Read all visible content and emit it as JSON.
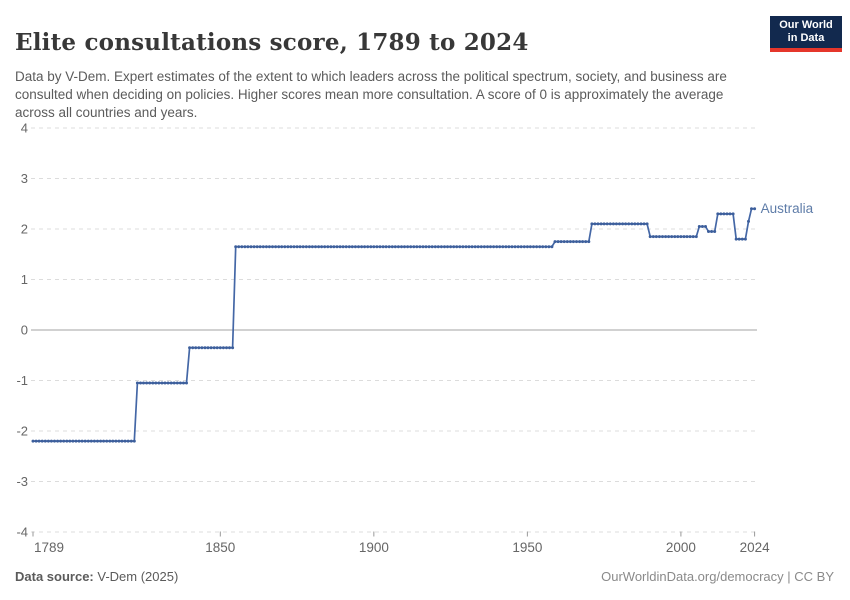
{
  "header": {
    "title": "Elite consultations score, 1789 to 2024",
    "subtitle": "Data by V-Dem. Expert estimates of the extent to which leaders across the political spectrum, society, and business are consulted when deciding on policies. Higher scores mean more consultation. A score of 0 is approximately the average across all countries and years.",
    "logo": {
      "line1": "Our World",
      "line2": "in Data",
      "background": "#12294E",
      "stripe": "#E5362B"
    }
  },
  "footer": {
    "source_label": "Data source:",
    "source_value": "V-Dem (2025)",
    "attribution": "OurWorldinData.org/democracy | CC BY"
  },
  "chart_data": {
    "type": "line",
    "title": "Elite consultations score, 1789 to 2024",
    "xlabel": "",
    "ylabel": "",
    "x": {
      "min": 1789,
      "max": 2024,
      "ticks": [
        1789,
        1850,
        1900,
        1950,
        2000,
        2024
      ]
    },
    "y": {
      "min": -4,
      "max": 4,
      "ticks": [
        4,
        3,
        2,
        1,
        0,
        -1,
        -2,
        -3,
        -4
      ],
      "zero_line": true
    },
    "grid": "dashed-horizontal",
    "legend": "entity-label-right-of-line",
    "colors": {
      "line": "#4467A6",
      "dot": "#3D5F9C",
      "series_label": "#5E7CA8",
      "grid": "#DCDCDC",
      "zero_line": "#A3A3A3",
      "tick": "#999999",
      "axis_text": "#666666"
    },
    "series": [
      {
        "name": "Australia",
        "color": "#4467A6",
        "dot_color": "#3D5F9C",
        "label_color": "#5E7CA8",
        "marker_every_year": true,
        "end_year": 2024,
        "steps_note": "step function: [start_year, value]; value holds until next breakpoint",
        "steps": [
          [
            1789,
            -2.2
          ],
          [
            1823,
            -1.05
          ],
          [
            1840,
            -0.35
          ],
          [
            1855,
            1.65
          ],
          [
            1959,
            1.75
          ],
          [
            1971,
            2.1
          ],
          [
            1990,
            1.85
          ],
          [
            2006,
            2.05
          ],
          [
            2009,
            1.95
          ],
          [
            2012,
            2.3
          ],
          [
            2018,
            1.8
          ],
          [
            2022,
            2.15
          ],
          [
            2023,
            2.4
          ]
        ]
      }
    ]
  }
}
